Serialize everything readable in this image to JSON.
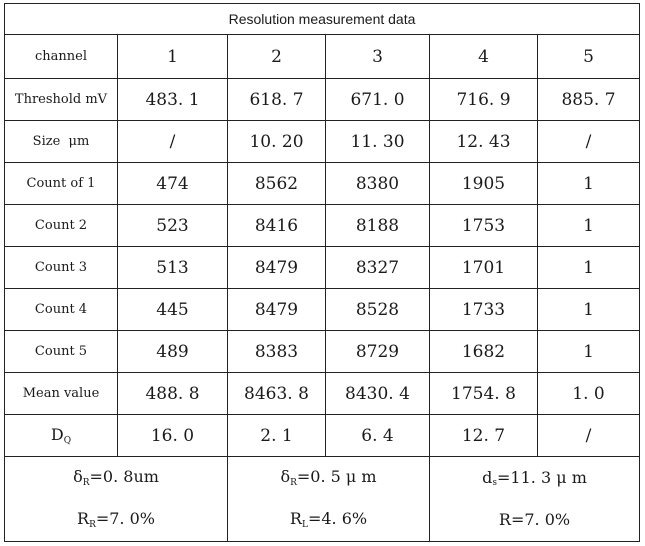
{
  "table": {
    "title": "Resolution measurement data",
    "header": {
      "label": "channel",
      "channels": [
        "1",
        "2",
        "3",
        "4",
        "5"
      ]
    },
    "rows": [
      {
        "label": "Threshold mV",
        "values": [
          "483. 1",
          "618. 7",
          "671. 0",
          "716. 9",
          "885. 7"
        ]
      },
      {
        "label": "Size  μm",
        "values": [
          "/",
          "10. 20",
          "11. 30",
          "12. 43",
          "/"
        ]
      },
      {
        "label": "Count of 1",
        "values": [
          "474",
          "8562",
          "8380",
          "1905",
          "1"
        ]
      },
      {
        "label": "Count 2",
        "values": [
          "523",
          "8416",
          "8188",
          "1753",
          "1"
        ]
      },
      {
        "label": "Count 3",
        "values": [
          "513",
          "8479",
          "8327",
          "1701",
          "1"
        ]
      },
      {
        "label": "Count 4",
        "values": [
          "445",
          "8479",
          "8528",
          "1733",
          "1"
        ]
      },
      {
        "label": "Count 5",
        "values": [
          "489",
          "8383",
          "8729",
          "1682",
          "1"
        ]
      },
      {
        "label": "Mean value",
        "values": [
          "488. 8",
          "8463. 8",
          "8430. 4",
          "1754. 8",
          "1. 0"
        ]
      }
    ],
    "dq_row": {
      "label_main": "D",
      "label_sub": "Q",
      "values": [
        "16. 0",
        "2. 1",
        "6. 4",
        "12. 7",
        "/"
      ]
    },
    "summary": [
      {
        "line1_main": "δ",
        "line1_sub": "R",
        "line1_rest": "=0. 8um",
        "line2_main": "R",
        "line2_sub": "R",
        "line2_rest": "=7. 0%"
      },
      {
        "line1_main": "δ",
        "line1_sub": "R",
        "line1_rest": "=0. 5 μ m",
        "line2_main": "R",
        "line2_sub": "L",
        "line2_rest": "=4. 6%"
      },
      {
        "line1_main": "d",
        "line1_sub": "s",
        "line1_rest": "=11. 3 μ m",
        "line2_main": "",
        "line2_sub": "",
        "line2_rest": "R=7. 0%"
      }
    ]
  }
}
